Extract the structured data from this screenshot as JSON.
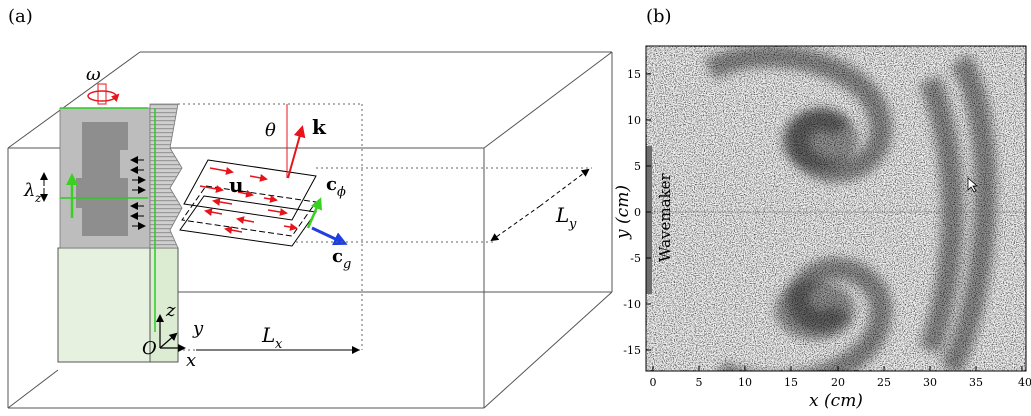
{
  "panel_a": {
    "label": "(a)",
    "symbols": {
      "omega": "ω",
      "theta": "θ",
      "k": "k",
      "u": "u",
      "c_phi_base": "c",
      "c_phi_sub": "ϕ",
      "c_g_base": "c",
      "c_g_sub": "g",
      "lambda_base": "λ",
      "lambda_sub": "z",
      "L_y_base": "L",
      "L_y_sub": "y",
      "L_x_base": "L",
      "L_x_sub": "x",
      "axis_z": "z",
      "axis_y": "y",
      "axis_x": "x",
      "origin": "O"
    },
    "colors": {
      "wave_vector": "#e8141c",
      "group_velocity": "#1f3fe0",
      "phase_velocity": "#39d11f",
      "green_guides": "#2ecc22"
    }
  },
  "panel_b": {
    "label": "(b)",
    "wavemaker_label": "Wavemaker",
    "x_axis_label": "x (cm)",
    "y_axis_label": "y (cm)",
    "x_ticks": [
      "0",
      "5",
      "10",
      "15",
      "20",
      "25",
      "30",
      "35",
      "40"
    ],
    "y_ticks": [
      "15",
      "10",
      "5",
      "0",
      "-5",
      "-10",
      "-15"
    ]
  }
}
